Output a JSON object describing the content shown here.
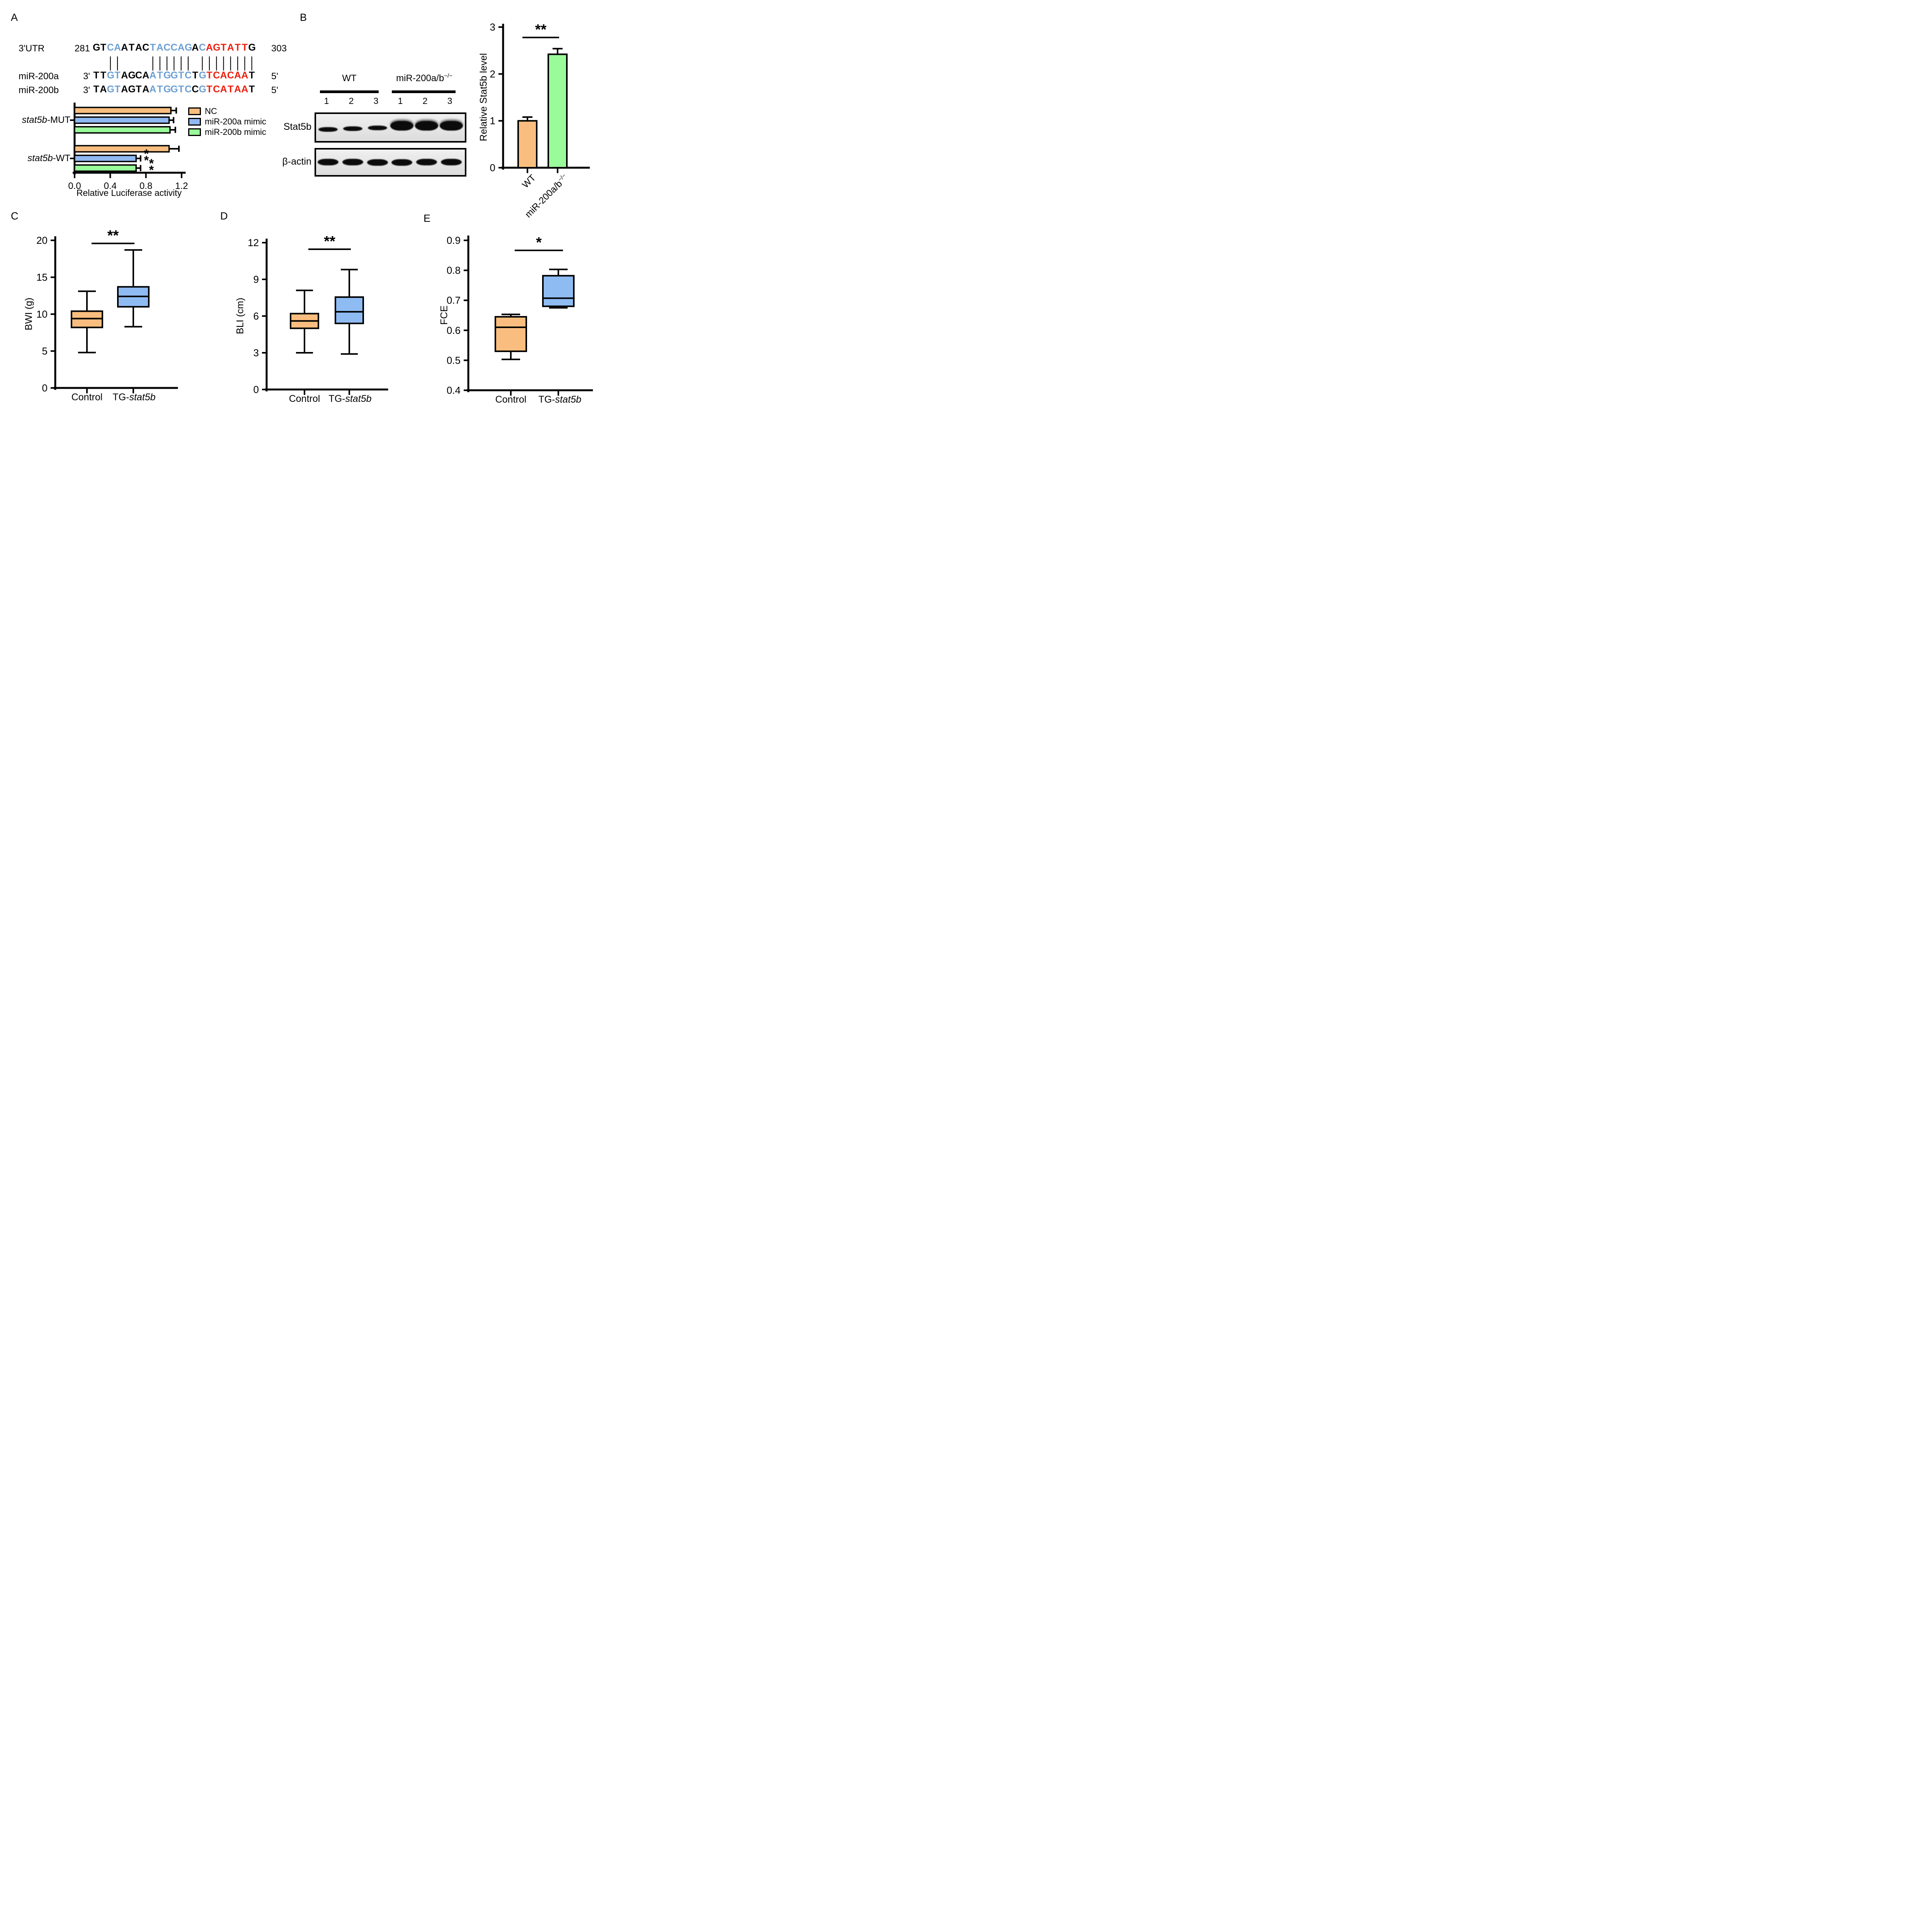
{
  "figure": {
    "panel_labels": {
      "a": "A",
      "b": "B",
      "c": "C",
      "d": "D",
      "e": "E"
    }
  },
  "panel_a": {
    "alignment": {
      "colors": {
        "k": "#000000",
        "b": "#6b9fd4",
        "r": "#ee1c0c"
      },
      "pipes": "  ||    |||||| ||||||||",
      "rows": [
        {
          "label": "3'UTR",
          "left": "281",
          "right": "303",
          "segments": [
            [
              "GT",
              "k"
            ],
            [
              "CA",
              "b"
            ],
            [
              "ATAC",
              "k"
            ],
            [
              "TACCAG",
              "b"
            ],
            [
              "A",
              "k"
            ],
            [
              "C",
              "b"
            ],
            [
              "AGTATT",
              "r"
            ],
            [
              "G",
              "k"
            ]
          ]
        },
        {
          "label": "miR-200a",
          "left": "3'",
          "right": "5'",
          "segments": [
            [
              "TT",
              "k"
            ],
            [
              "GT",
              "b"
            ],
            [
              "AGCA",
              "k"
            ],
            [
              "ATGGTC",
              "b"
            ],
            [
              "T",
              "k"
            ],
            [
              "G",
              "b"
            ],
            [
              "TCACAA",
              "r"
            ],
            [
              "T",
              "k"
            ]
          ]
        },
        {
          "label": "miR-200b",
          "left": "3'",
          "right": "5'",
          "segments": [
            [
              "TA",
              "k"
            ],
            [
              "GT",
              "b"
            ],
            [
              "AGTA",
              "k"
            ],
            [
              "ATGGTC",
              "b"
            ],
            [
              "C",
              "k"
            ],
            [
              "G",
              "b"
            ],
            [
              "TCATAA",
              "r"
            ],
            [
              "T",
              "k"
            ]
          ]
        }
      ]
    }
  },
  "panel_b": {
    "blot": {
      "group_labels": [
        {
          "text": "WT",
          "sup": ""
        },
        {
          "text": "miR-200a/b",
          "sup": "−/−"
        }
      ],
      "lanes": [
        "1",
        "2",
        "3",
        "1",
        "2",
        "3"
      ],
      "rows": [
        {
          "label": "Stat5b",
          "bands": [
            "thin",
            "thin",
            "thin",
            "thick",
            "thick",
            "thick"
          ]
        },
        {
          "label": "β-actin",
          "bands": [
            "medium",
            "medium",
            "medium",
            "medium",
            "medium",
            "medium"
          ]
        }
      ]
    }
  },
  "chart_data": [
    {
      "id": "luciferase",
      "type": "bar",
      "orientation": "horizontal",
      "xlabel": "Relative Luciferase activity",
      "xticks": [
        0.0,
        0.4,
        0.8,
        1.2
      ],
      "xtick_labels": [
        "0.0",
        "0.4",
        "0.8",
        "1.2"
      ],
      "xlim": [
        0,
        1.25
      ],
      "legend_position": "upper right",
      "legend": [
        {
          "label": "NC",
          "color": "#f9be7f"
        },
        {
          "label": "miR-200a mimic",
          "color": "#90b9f2"
        },
        {
          "label": "miR-200b mimic",
          "color": "#99fb99"
        }
      ],
      "groups": [
        {
          "label_italic": "stat5b",
          "label_suffix": "-MUT",
          "bars": [
            {
              "series": "NC",
              "value": 1.08,
              "err": 0.06,
              "sig": ""
            },
            {
              "series": "miR-200a mimic",
              "value": 1.06,
              "err": 0.05,
              "sig": ""
            },
            {
              "series": "miR-200b mimic",
              "value": 1.07,
              "err": 0.06,
              "sig": ""
            }
          ]
        },
        {
          "label_italic": "stat5b",
          "label_suffix": "-WT",
          "bars": [
            {
              "series": "NC",
              "value": 1.06,
              "err": 0.11,
              "sig": ""
            },
            {
              "series": "miR-200a mimic",
              "value": 0.69,
              "err": 0.05,
              "sig": "**"
            },
            {
              "series": "miR-200b mimic",
              "value": 0.69,
              "err": 0.05,
              "sig": "**"
            }
          ]
        }
      ]
    },
    {
      "id": "stat5b_level",
      "type": "bar",
      "orientation": "vertical",
      "ylabel": "Relative Stat5b level",
      "yticks": [
        0,
        1,
        2,
        3
      ],
      "ytick_labels": [
        "0",
        "1",
        "2",
        "3"
      ],
      "ylim": [
        0,
        3
      ],
      "categories": [
        {
          "text": "WT",
          "sup": ""
        },
        {
          "text": "miR-200a/b",
          "sup": "−/−"
        }
      ],
      "values": [
        1.0,
        2.42
      ],
      "errors": [
        0.08,
        0.12
      ],
      "colors": [
        "#f9be7f",
        "#99fb99"
      ],
      "sig": "**"
    },
    {
      "id": "bwi",
      "type": "box",
      "ylabel": "BWI (g)",
      "yticks": [
        0,
        5,
        10,
        15,
        20
      ],
      "ytick_labels": [
        "0",
        "5",
        "10",
        "15",
        "20"
      ],
      "ylim": [
        0,
        20
      ],
      "categories": [
        {
          "prefix": "Control",
          "italic": ""
        },
        {
          "prefix": "TG-",
          "italic": "stat5b"
        }
      ],
      "boxes": [
        {
          "min": 4.8,
          "q1": 8.2,
          "median": 9.4,
          "q3": 10.4,
          "max": 13.1,
          "color": "#f9be7f"
        },
        {
          "min": 8.3,
          "q1": 11.0,
          "median": 12.4,
          "q3": 13.7,
          "max": 18.7,
          "color": "#8fbbf3"
        }
      ],
      "sig": "**"
    },
    {
      "id": "bli",
      "type": "box",
      "ylabel": "BLI (cm)",
      "yticks": [
        0,
        3,
        6,
        9,
        12
      ],
      "ytick_labels": [
        "0",
        "3",
        "6",
        "9",
        "12"
      ],
      "ylim": [
        0,
        12
      ],
      "categories": [
        {
          "prefix": "Control",
          "italic": ""
        },
        {
          "prefix": "TG-",
          "italic": "stat5b"
        }
      ],
      "boxes": [
        {
          "min": 3.0,
          "q1": 5.0,
          "median": 5.6,
          "q3": 6.2,
          "max": 8.1,
          "color": "#f9be7f"
        },
        {
          "min": 2.9,
          "q1": 5.4,
          "median": 6.35,
          "q3": 7.55,
          "max": 9.8,
          "color": "#8fbbf3"
        }
      ],
      "sig": "**"
    },
    {
      "id": "fce",
      "type": "box",
      "ylabel": "FCE",
      "yticks": [
        0.4,
        0.5,
        0.6,
        0.7,
        0.8,
        0.9
      ],
      "ytick_labels": [
        "0.4",
        "0.5",
        "0.6",
        "0.7",
        "0.8",
        "0.9"
      ],
      "ylim": [
        0.4,
        0.9
      ],
      "categories": [
        {
          "prefix": "Control",
          "italic": ""
        },
        {
          "prefix": "TG-",
          "italic": "stat5b"
        }
      ],
      "boxes": [
        {
          "min": 0.503,
          "q1": 0.53,
          "median": 0.61,
          "q3": 0.645,
          "max": 0.653,
          "color": "#f9be7f"
        },
        {
          "min": 0.675,
          "q1": 0.68,
          "median": 0.707,
          "q3": 0.782,
          "max": 0.803,
          "color": "#8fbbf3"
        }
      ],
      "sig": "*"
    }
  ]
}
